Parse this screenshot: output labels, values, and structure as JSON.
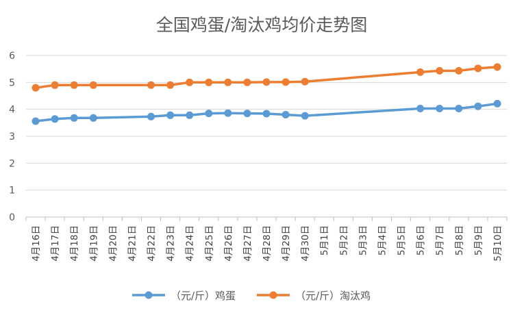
{
  "chart_data": {
    "type": "line",
    "title": "全国鸡蛋/淘汰鸡均价走势图",
    "x": [
      "4月16日",
      "4月17日",
      "4月18日",
      "4月19日",
      "4月20日",
      "4月21日",
      "4月22日",
      "4月23日",
      "4月24日",
      "4月25日",
      "4月26日",
      "4月27日",
      "4月28日",
      "4月29日",
      "4月30日",
      "5月1日",
      "5月2日",
      "5月3日",
      "5月4日",
      "5月5日",
      "5月6日",
      "5月7日",
      "5月8日",
      "5月9日",
      "5月10日"
    ],
    "series": [
      {
        "name": "（元/斤）鸡蛋",
        "color": "#5B9BD5",
        "values": [
          3.56,
          3.64,
          3.68,
          3.68,
          null,
          null,
          3.73,
          3.78,
          3.78,
          3.85,
          3.86,
          3.85,
          3.84,
          3.8,
          3.76,
          null,
          null,
          null,
          null,
          null,
          4.03,
          4.03,
          4.03,
          4.11,
          4.21
        ]
      },
      {
        "name": "（元/斤）淘汰鸡",
        "color": "#ED7D31",
        "values": [
          4.8,
          4.9,
          4.9,
          4.9,
          null,
          null,
          4.9,
          4.9,
          5.0,
          5.0,
          5.0,
          5.0,
          5.01,
          5.01,
          5.03,
          null,
          null,
          null,
          null,
          null,
          5.38,
          5.43,
          5.43,
          5.52,
          5.57
        ]
      }
    ],
    "y_ticks": [
      "0",
      "1",
      "2",
      "3",
      "4",
      "5",
      "6"
    ],
    "ylim": [
      0,
      6
    ],
    "grid": true,
    "legend_position": "bottom"
  }
}
